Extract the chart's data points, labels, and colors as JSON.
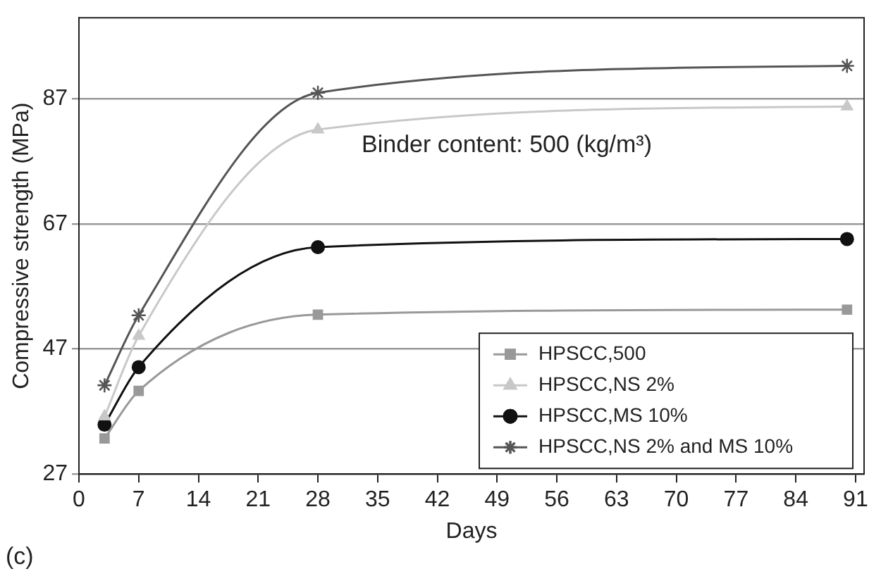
{
  "chart_data": {
    "type": "line",
    "xlabel": "Days",
    "ylabel": "Compressive strength (MPa)",
    "x": [
      3,
      7,
      28,
      90
    ],
    "xlim": [
      0,
      92
    ],
    "xticks": [
      0,
      7,
      14,
      21,
      28,
      35,
      42,
      49,
      56,
      63,
      70,
      77,
      84,
      91
    ],
    "ylim": [
      27,
      100
    ],
    "yticks": [
      27,
      47,
      67,
      87
    ],
    "grid": "y",
    "legend": "bottom right",
    "annotations": [
      "Binder content: 500 (kg/m³)",
      "(c)"
    ],
    "series": [
      {
        "name": "HPSCC,500",
        "color": "#999999",
        "marker": "square",
        "values": [
          32.7,
          40.3,
          52.5,
          53.3
        ]
      },
      {
        "name": "HPSCC,NS 2%",
        "color": "#c8c8c8",
        "marker": "triangle",
        "values": [
          36.2,
          49.1,
          82.1,
          85.8
        ]
      },
      {
        "name": "HPSCC,MS 10%",
        "color": "#111111",
        "marker": "circle",
        "values": [
          34.9,
          44.1,
          63.3,
          64.6
        ]
      },
      {
        "name": "HPSCC,NS 2% and MS 10%",
        "color": "#555555",
        "marker": "cross",
        "values": [
          41.2,
          52.4,
          88.0,
          92.3
        ]
      }
    ]
  }
}
